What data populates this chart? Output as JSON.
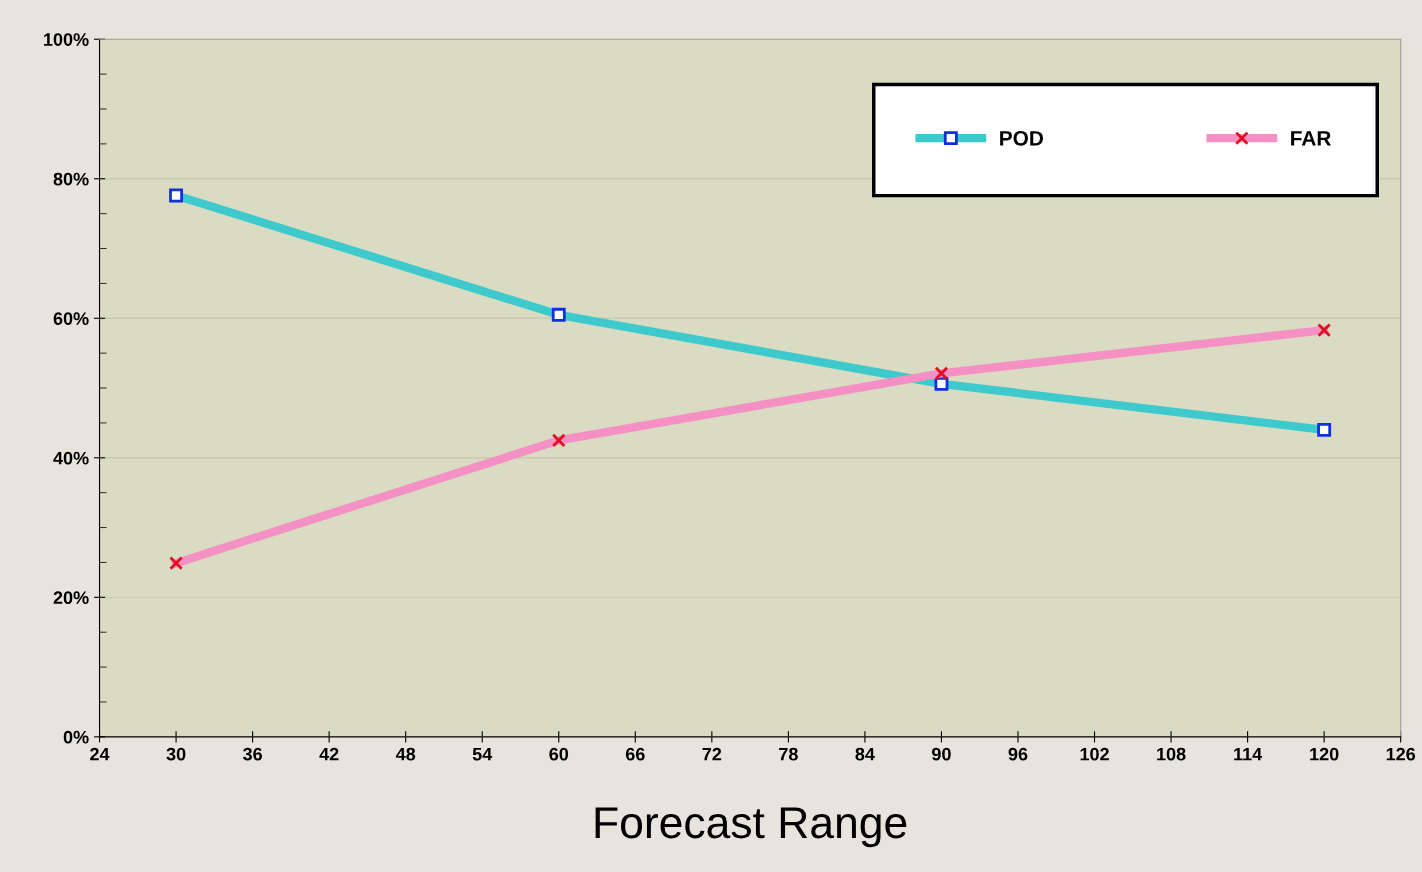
{
  "chart_data": {
    "type": "line",
    "xlabel": "Forecast Range",
    "x": [
      30,
      60,
      90,
      120
    ],
    "series": [
      {
        "name": "POD",
        "color": "#3ec9cc",
        "marker": "square",
        "values": [
          77.6,
          60.5,
          50.6,
          44.0
        ]
      },
      {
        "name": "FAR",
        "color": "#f590c4",
        "marker": "cross",
        "values": [
          24.9,
          42.5,
          52.1,
          58.3
        ]
      }
    ],
    "xlim": [
      24,
      126
    ],
    "xticks": [
      24,
      30,
      36,
      42,
      48,
      54,
      60,
      66,
      72,
      78,
      84,
      90,
      96,
      102,
      108,
      114,
      120,
      126
    ],
    "ylim": [
      0,
      100
    ],
    "yticks": [
      {
        "value": 0,
        "label": "0%"
      },
      {
        "value": 20,
        "label": "20%"
      },
      {
        "value": 40,
        "label": "40%"
      },
      {
        "value": 60,
        "label": "60%"
      },
      {
        "value": 80,
        "label": "80%"
      },
      {
        "value": 100,
        "label": "100%"
      }
    ],
    "grid": "y",
    "legend": "top right",
    "line_style": "solid"
  }
}
